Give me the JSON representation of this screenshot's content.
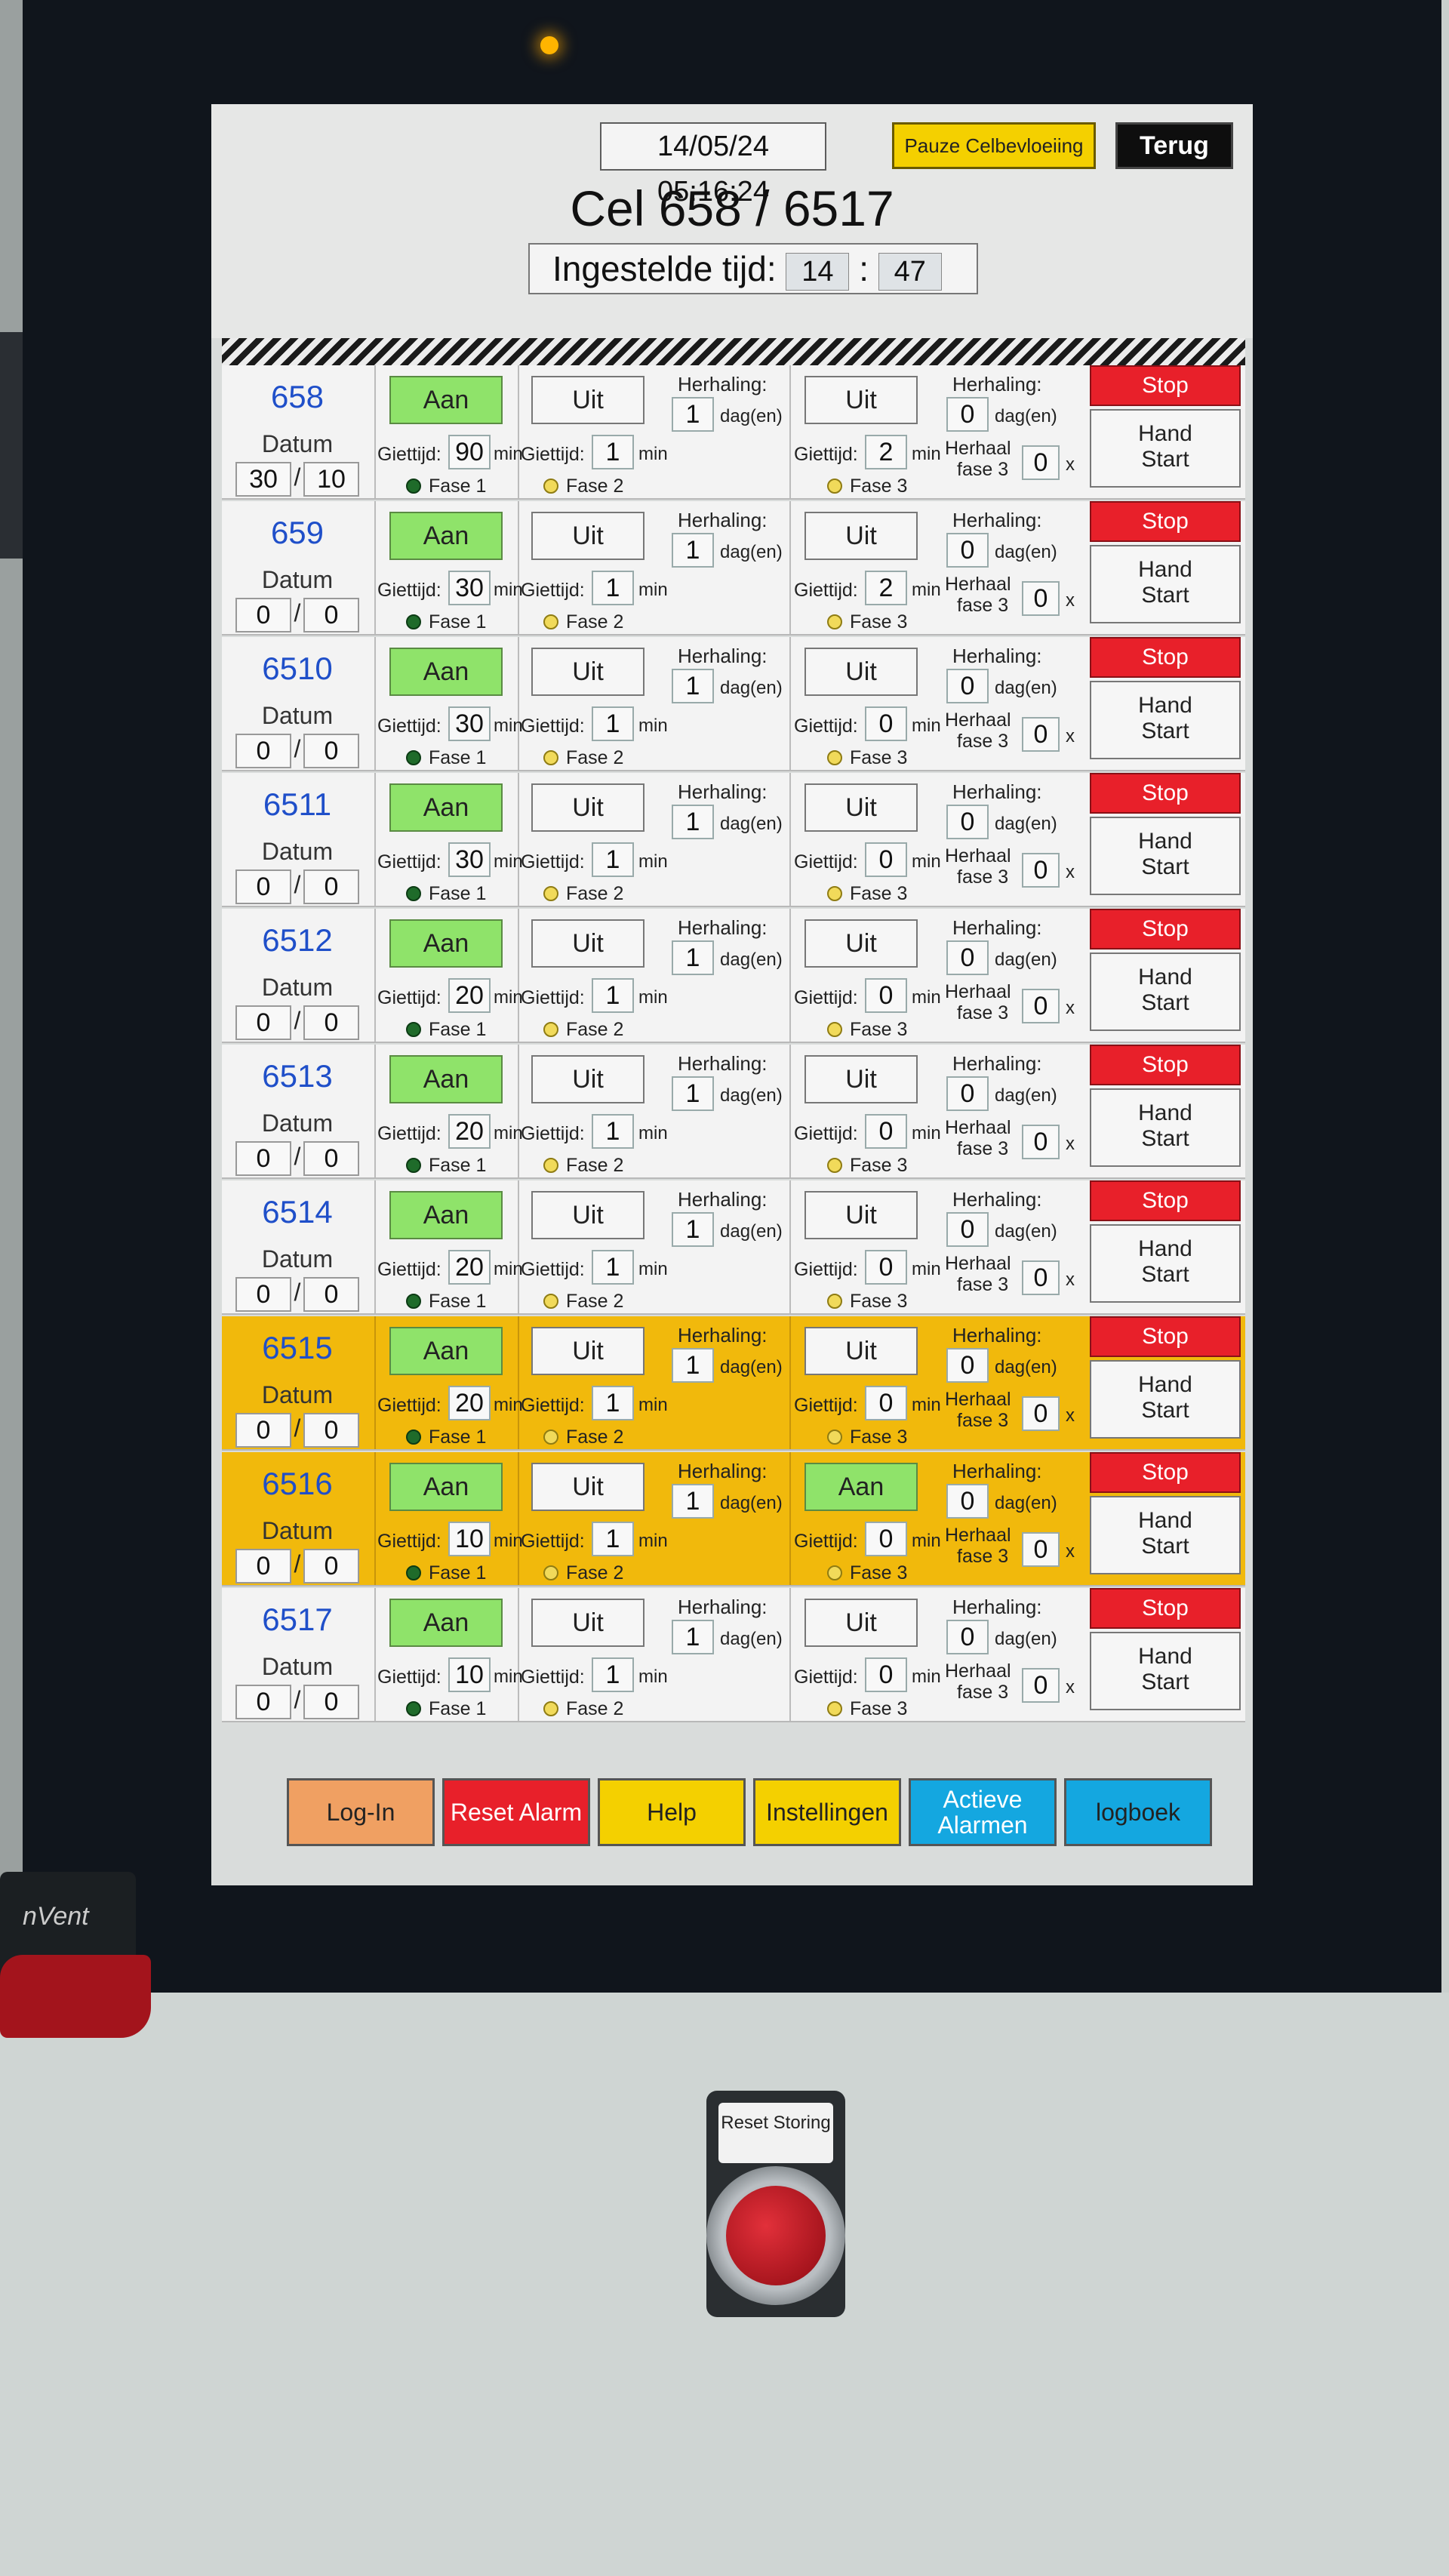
{
  "header": {
    "datetime": "14/05/24 05:16:24",
    "pause_button": "Pauze Celbevloeiing",
    "back_button": "Terug",
    "title": "Cel 658 / 6517",
    "set_time_label": "Ingestelde tijd:",
    "set_time_hours": "14",
    "set_time_sep": ":",
    "set_time_minutes": "47"
  },
  "labels": {
    "datum": "Datum",
    "slash": "/",
    "herhaling": "Herhaling:",
    "dagen": "dag(en)",
    "giettijd": "Giettijd:",
    "min": "min",
    "fase1": "Fase 1",
    "fase2": "Fase 2",
    "fase3": "Fase 3",
    "herhaal": "Herhaal",
    "herhaal_fase3": "fase 3",
    "x": "x",
    "stop": "Stop",
    "hand_line1": "Hand",
    "hand_line2": "Start"
  },
  "colors": {
    "alarm_row": "#f1b90c",
    "on_button": "#8fe36a",
    "stop_button": "#e8202a",
    "cell_id": "#1f4fc9"
  },
  "rows": [
    {
      "id": "658",
      "alarm": false,
      "date_day": "30",
      "date_month": "10",
      "btn1": "Aan",
      "btn1_on": true,
      "giet1": "90",
      "btn2": "Uit",
      "btn2_on": false,
      "herh2": "1",
      "giet2": "1",
      "btn3": "Uit",
      "btn3_on": false,
      "herh3": "0",
      "giet3": "2",
      "herhaal3": "0",
      "fase1": "green",
      "fase2": "yellow",
      "fase3": "yellow"
    },
    {
      "id": "659",
      "alarm": false,
      "date_day": "0",
      "date_month": "0",
      "btn1": "Aan",
      "btn1_on": true,
      "giet1": "30",
      "btn2": "Uit",
      "btn2_on": false,
      "herh2": "1",
      "giet2": "1",
      "btn3": "Uit",
      "btn3_on": false,
      "herh3": "0",
      "giet3": "2",
      "herhaal3": "0",
      "fase1": "green",
      "fase2": "yellow",
      "fase3": "yellow"
    },
    {
      "id": "6510",
      "alarm": false,
      "date_day": "0",
      "date_month": "0",
      "btn1": "Aan",
      "btn1_on": true,
      "giet1": "30",
      "btn2": "Uit",
      "btn2_on": false,
      "herh2": "1",
      "giet2": "1",
      "btn3": "Uit",
      "btn3_on": false,
      "herh3": "0",
      "giet3": "0",
      "herhaal3": "0",
      "fase1": "green",
      "fase2": "yellow",
      "fase3": "yellow"
    },
    {
      "id": "6511",
      "alarm": false,
      "date_day": "0",
      "date_month": "0",
      "btn1": "Aan",
      "btn1_on": true,
      "giet1": "30",
      "btn2": "Uit",
      "btn2_on": false,
      "herh2": "1",
      "giet2": "1",
      "btn3": "Uit",
      "btn3_on": false,
      "herh3": "0",
      "giet3": "0",
      "herhaal3": "0",
      "fase1": "green",
      "fase2": "yellow",
      "fase3": "yellow"
    },
    {
      "id": "6512",
      "alarm": false,
      "date_day": "0",
      "date_month": "0",
      "btn1": "Aan",
      "btn1_on": true,
      "giet1": "20",
      "btn2": "Uit",
      "btn2_on": false,
      "herh2": "1",
      "giet2": "1",
      "btn3": "Uit",
      "btn3_on": false,
      "herh3": "0",
      "giet3": "0",
      "herhaal3": "0",
      "fase1": "green",
      "fase2": "yellow",
      "fase3": "yellow"
    },
    {
      "id": "6513",
      "alarm": false,
      "date_day": "0",
      "date_month": "0",
      "btn1": "Aan",
      "btn1_on": true,
      "giet1": "20",
      "btn2": "Uit",
      "btn2_on": false,
      "herh2": "1",
      "giet2": "1",
      "btn3": "Uit",
      "btn3_on": false,
      "herh3": "0",
      "giet3": "0",
      "herhaal3": "0",
      "fase1": "green",
      "fase2": "yellow",
      "fase3": "yellow"
    },
    {
      "id": "6514",
      "alarm": false,
      "date_day": "0",
      "date_month": "0",
      "btn1": "Aan",
      "btn1_on": true,
      "giet1": "20",
      "btn2": "Uit",
      "btn2_on": false,
      "herh2": "1",
      "giet2": "1",
      "btn3": "Uit",
      "btn3_on": false,
      "herh3": "0",
      "giet3": "0",
      "herhaal3": "0",
      "fase1": "green",
      "fase2": "yellow",
      "fase3": "yellow"
    },
    {
      "id": "6515",
      "alarm": true,
      "date_day": "0",
      "date_month": "0",
      "btn1": "Aan",
      "btn1_on": true,
      "giet1": "20",
      "btn2": "Uit",
      "btn2_on": false,
      "herh2": "1",
      "giet2": "1",
      "btn3": "Uit",
      "btn3_on": false,
      "herh3": "0",
      "giet3": "0",
      "herhaal3": "0",
      "fase1": "green",
      "fase2": "yellow",
      "fase3": "yellow"
    },
    {
      "id": "6516",
      "alarm": true,
      "date_day": "0",
      "date_month": "0",
      "btn1": "Aan",
      "btn1_on": true,
      "giet1": "10",
      "btn2": "Uit",
      "btn2_on": false,
      "herh2": "1",
      "giet2": "1",
      "btn3": "Aan",
      "btn3_on": true,
      "herh3": "0",
      "giet3": "0",
      "herhaal3": "0",
      "fase1": "green",
      "fase2": "yellow",
      "fase3": "yellow"
    },
    {
      "id": "6517",
      "alarm": false,
      "date_day": "0",
      "date_month": "0",
      "btn1": "Aan",
      "btn1_on": true,
      "giet1": "10",
      "btn2": "Uit",
      "btn2_on": false,
      "herh2": "1",
      "giet2": "1",
      "btn3": "Uit",
      "btn3_on": false,
      "herh3": "0",
      "giet3": "0",
      "herhaal3": "0",
      "fase1": "green",
      "fase2": "yellow",
      "fase3": "yellow"
    }
  ],
  "footer": [
    {
      "label": "Log-In",
      "color": "#f0a062",
      "text_color": "#222"
    },
    {
      "label": "Reset Alarm",
      "color": "#e8202a",
      "text_color": "#ffffff"
    },
    {
      "label": "Help",
      "color": "#f4d000",
      "text_color": "#222"
    },
    {
      "label": "Instellingen",
      "color": "#f4d000",
      "text_color": "#222"
    },
    {
      "label": "Actieve Alarmen",
      "color": "#14a7e0",
      "text_color": "#ffffff"
    },
    {
      "label": "logboek",
      "color": "#14a7e0",
      "text_color": "#222"
    }
  ],
  "hardware": {
    "reset_label": "Reset Storing",
    "lock_brand": "nVent"
  }
}
